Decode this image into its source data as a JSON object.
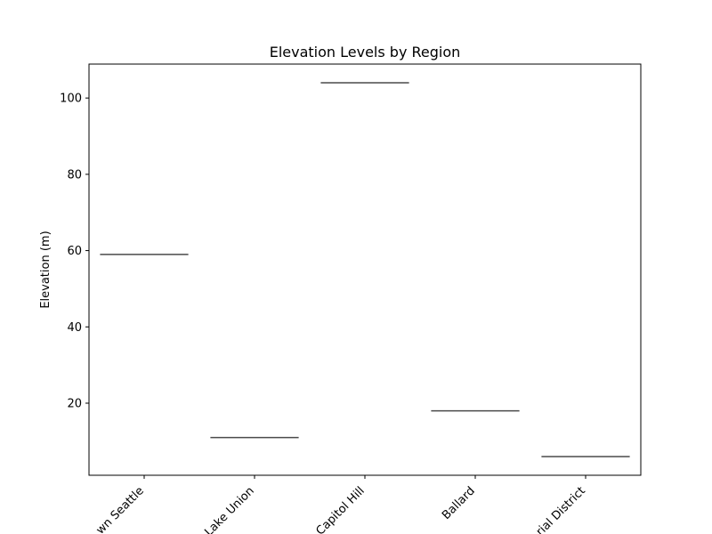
{
  "chart_data": {
    "type": "box",
    "title": "Elevation Levels by Region",
    "xlabel": "",
    "ylabel": "Elevation (m)",
    "categories": [
      "wn Seattle",
      "Lake Union",
      "Capitol Hill",
      "Ballard",
      "rial District"
    ],
    "values": [
      59,
      11,
      104,
      18,
      6
    ],
    "ylim": [
      1.1,
      108.9
    ],
    "yticks": [
      20,
      40,
      60,
      80,
      100
    ],
    "grid": false,
    "legend": "none",
    "box_color": "#4a4a4a"
  }
}
